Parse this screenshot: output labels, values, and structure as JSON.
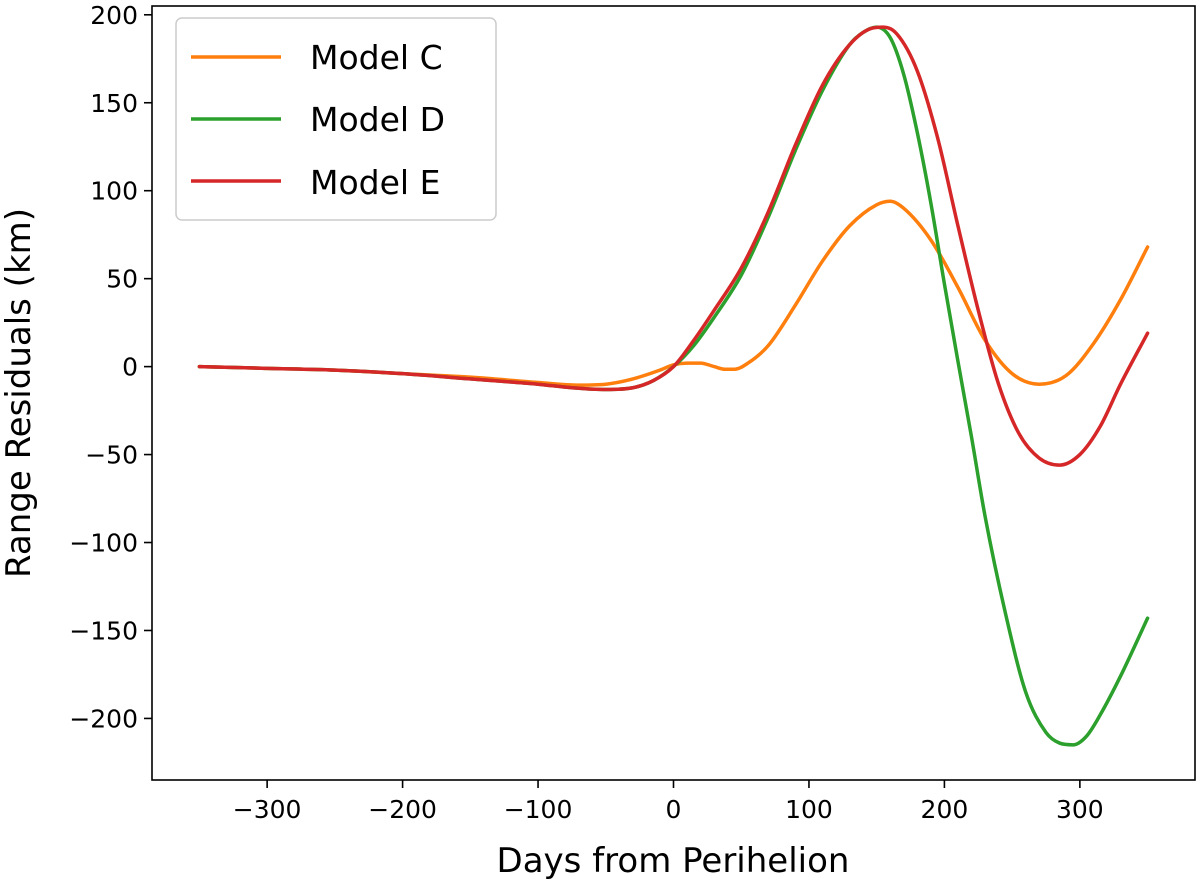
{
  "chart_data": {
    "type": "line",
    "title": "",
    "xlabel": "Days from Perihelion",
    "ylabel": "Range Residuals (km)",
    "xlim": [
      -385,
      385
    ],
    "ylim": [
      -235,
      205
    ],
    "xticks": [
      -300,
      -200,
      -100,
      0,
      100,
      200,
      300
    ],
    "yticks": [
      -200,
      -150,
      -100,
      -50,
      0,
      50,
      100,
      150,
      200
    ],
    "xtick_labels": [
      "−300",
      "−200",
      "−100",
      "0",
      "100",
      "200",
      "300"
    ],
    "ytick_labels": [
      "−200",
      "−150",
      "−100",
      "−50",
      "0",
      "50",
      "100",
      "150",
      "200"
    ],
    "grid": false,
    "legend_position": "top-left",
    "series": [
      {
        "name": "Model C",
        "color": "#ff7f0e",
        "x": [
          -350,
          -300,
          -250,
          -200,
          -150,
          -100,
          -70,
          -50,
          -30,
          -10,
          0,
          10,
          20,
          30,
          38,
          45,
          55,
          70,
          90,
          110,
          130,
          150,
          160,
          170,
          190,
          210,
          230,
          250,
          270,
          290,
          310,
          330,
          350
        ],
        "y": [
          0,
          -1,
          -2,
          -4,
          -6,
          -9,
          -10.5,
          -10,
          -7,
          -2,
          1,
          2,
          2,
          0,
          -1.5,
          -1.5,
          2,
          12,
          35,
          60,
          80,
          92,
          94,
          90,
          72,
          45,
          15,
          -4,
          -10,
          -5,
          13,
          38,
          68
        ]
      },
      {
        "name": "Model D",
        "color": "#2ca02c",
        "x": [
          -350,
          -300,
          -250,
          -200,
          -150,
          -100,
          -75,
          -50,
          -30,
          -15,
          0,
          15,
          30,
          50,
          70,
          90,
          110,
          130,
          140,
          150,
          160,
          170,
          180,
          190,
          200,
          210,
          220,
          230,
          245,
          260,
          275,
          285,
          295,
          305,
          315,
          330,
          350
        ],
        "y": [
          0,
          -1,
          -2,
          -4,
          -7,
          -10,
          -12,
          -13,
          -12,
          -8,
          0,
          12,
          28,
          52,
          85,
          123,
          157,
          183,
          190,
          193,
          187,
          166,
          133,
          93,
          47,
          3,
          -40,
          -85,
          -140,
          -185,
          -208,
          -214,
          -215,
          -210,
          -198,
          -176,
          -143
        ]
      },
      {
        "name": "Model E",
        "color": "#d62728",
        "x": [
          -350,
          -300,
          -250,
          -200,
          -150,
          -100,
          -75,
          -50,
          -30,
          -15,
          0,
          15,
          30,
          50,
          70,
          90,
          110,
          130,
          145,
          155,
          165,
          180,
          195,
          210,
          225,
          240,
          255,
          270,
          285,
          300,
          315,
          330,
          350
        ],
        "y": [
          0,
          -1,
          -2,
          -4,
          -7,
          -10,
          -12,
          -13,
          -12,
          -8,
          0,
          15,
          32,
          56,
          88,
          126,
          160,
          183,
          192,
          193,
          189,
          168,
          130,
          80,
          32,
          -10,
          -38,
          -52,
          -56,
          -50,
          -34,
          -10,
          19
        ]
      }
    ]
  }
}
